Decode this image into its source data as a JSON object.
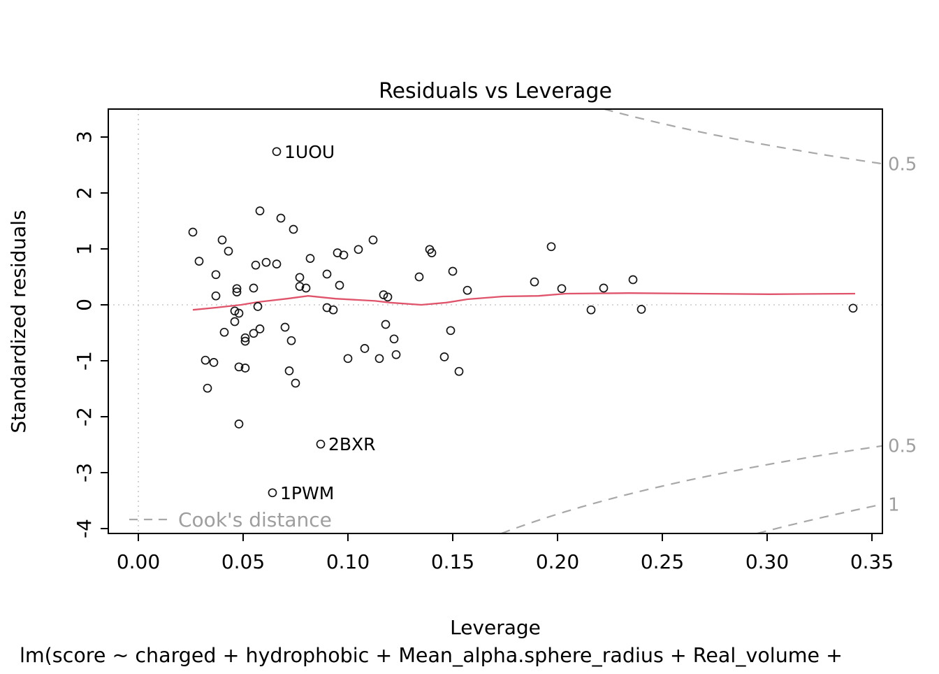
{
  "title": "Residuals vs Leverage",
  "x_axis": {
    "label": "Leverage",
    "tick_labels": [
      "0.00",
      "0.05",
      "0.10",
      "0.15",
      "0.20",
      "0.25",
      "0.30",
      "0.35"
    ],
    "tick_values": [
      0.0,
      0.05,
      0.1,
      0.15,
      0.2,
      0.25,
      0.3,
      0.35
    ]
  },
  "y_axis": {
    "label": "Standardized residuals",
    "tick_labels": [
      "3",
      "2",
      "1",
      "0",
      "-1",
      "-2",
      "-3",
      "-4"
    ],
    "tick_values": [
      3,
      2,
      1,
      0,
      -1,
      -2,
      -3,
      -4
    ]
  },
  "caption": "lm(score ~ charged + hydrophobic + Mean_alpha.sphere_radius + Real_volume +",
  "legend": {
    "label": "Cook's distance"
  },
  "colors": {
    "smooth_line": "#df536b",
    "contour": "#a8a8a8",
    "reference_dotted": "#c8c8c8",
    "gray_text": "#9e9e9e",
    "point_stroke": "#141414",
    "axis": "#000000"
  },
  "chart_data": {
    "type": "scatter",
    "title": "Residuals vs Leverage",
    "xlabel": "Leverage",
    "ylabel": "Standardized residuals",
    "xlim": [
      -0.014,
      0.355
    ],
    "ylim": [
      -4.09,
      3.5
    ],
    "grid": false,
    "reference_lines": {
      "vertical_at_x": 0,
      "horizontal_at_y": 0
    },
    "points": [
      [
        0.026,
        1.3
      ],
      [
        0.029,
        0.78
      ],
      [
        0.037,
        0.54
      ],
      [
        0.037,
        0.16
      ],
      [
        0.04,
        1.16
      ],
      [
        0.043,
        0.96
      ],
      [
        0.046,
        -0.11
      ],
      [
        0.047,
        0.29
      ],
      [
        0.047,
        0.23
      ],
      [
        0.048,
        -0.15
      ],
      [
        0.046,
        -0.3
      ],
      [
        0.041,
        -0.49
      ],
      [
        0.051,
        -0.65
      ],
      [
        0.051,
        -0.59
      ],
      [
        0.055,
        -0.51
      ],
      [
        0.058,
        -0.43
      ],
      [
        0.055,
        0.3
      ],
      [
        0.056,
        0.71
      ],
      [
        0.057,
        -0.03
      ],
      [
        0.058,
        1.68
      ],
      [
        0.061,
        0.76
      ],
      [
        0.066,
        0.73
      ],
      [
        0.068,
        1.55
      ],
      [
        0.07,
        -0.4
      ],
      [
        0.073,
        -0.64
      ],
      [
        0.074,
        1.35
      ],
      [
        0.077,
        0.49
      ],
      [
        0.077,
        0.33
      ],
      [
        0.08,
        0.3
      ],
      [
        0.082,
        0.83
      ],
      [
        0.09,
        0.55
      ],
      [
        0.09,
        -0.05
      ],
      [
        0.093,
        -0.09
      ],
      [
        0.095,
        0.93
      ],
      [
        0.096,
        0.35
      ],
      [
        0.098,
        0.89
      ],
      [
        0.105,
        0.99
      ],
      [
        0.112,
        1.16
      ],
      [
        0.117,
        0.18
      ],
      [
        0.119,
        0.14
      ],
      [
        0.118,
        -0.35
      ],
      [
        0.122,
        -0.61
      ],
      [
        0.123,
        -0.89
      ],
      [
        0.115,
        -0.96
      ],
      [
        0.108,
        -0.78
      ],
      [
        0.1,
        -0.96
      ],
      [
        0.134,
        0.5
      ],
      [
        0.139,
        0.99
      ],
      [
        0.14,
        0.93
      ],
      [
        0.146,
        -0.93
      ],
      [
        0.15,
        0.6
      ],
      [
        0.149,
        -0.46
      ],
      [
        0.153,
        -1.19
      ],
      [
        0.157,
        0.26
      ],
      [
        0.189,
        0.41
      ],
      [
        0.197,
        1.04
      ],
      [
        0.202,
        0.29
      ],
      [
        0.216,
        -0.09
      ],
      [
        0.222,
        0.3
      ],
      [
        0.236,
        0.45
      ],
      [
        0.24,
        -0.08
      ],
      [
        0.341,
        -0.06
      ],
      [
        0.032,
        -0.99
      ],
      [
        0.036,
        -1.03
      ],
      [
        0.048,
        -1.11
      ],
      [
        0.051,
        -1.13
      ],
      [
        0.072,
        -1.18
      ],
      [
        0.075,
        -1.4
      ],
      [
        0.033,
        -1.49
      ],
      [
        0.048,
        -2.13
      ]
    ],
    "labeled_points": [
      {
        "label": "1UOU",
        "leverage": 0.066,
        "residual": 2.74
      },
      {
        "label": "2BXR",
        "leverage": 0.087,
        "residual": -2.49
      },
      {
        "label": "1PWM",
        "leverage": 0.064,
        "residual": -3.36
      }
    ],
    "smooth_line": [
      [
        0.026,
        -0.09
      ],
      [
        0.037,
        -0.05
      ],
      [
        0.049,
        0.0
      ],
      [
        0.057,
        0.05
      ],
      [
        0.071,
        0.11
      ],
      [
        0.081,
        0.16
      ],
      [
        0.094,
        0.11
      ],
      [
        0.113,
        0.07
      ],
      [
        0.12,
        0.04
      ],
      [
        0.135,
        0.0
      ],
      [
        0.147,
        0.04
      ],
      [
        0.157,
        0.1
      ],
      [
        0.174,
        0.15
      ],
      [
        0.191,
        0.16
      ],
      [
        0.204,
        0.2
      ],
      [
        0.234,
        0.21
      ],
      [
        0.267,
        0.2
      ],
      [
        0.301,
        0.19
      ],
      [
        0.342,
        0.2
      ]
    ],
    "cooks_distance": {
      "n_parameters": 7,
      "contours": [
        {
          "level": 0.5,
          "side": "upper",
          "label": "0.5"
        },
        {
          "level": 0.5,
          "side": "lower",
          "label": "0.5"
        },
        {
          "level": 1,
          "side": "lower",
          "label": "1"
        }
      ]
    }
  }
}
